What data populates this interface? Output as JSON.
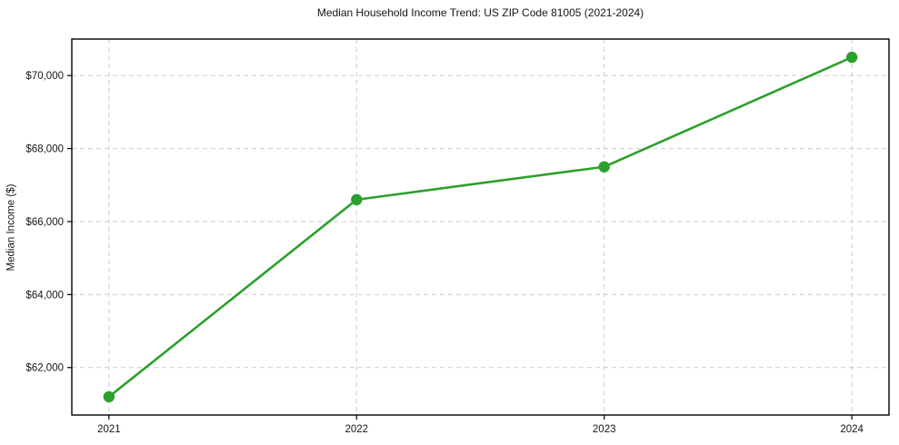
{
  "chart_data": {
    "type": "line",
    "title": "Median Household Income Trend: US ZIP Code 81005 (2021-2024)",
    "xlabel": "",
    "ylabel": "Median Income ($)",
    "x": [
      2021,
      2022,
      2023,
      2024
    ],
    "xtick_labels": [
      "2021",
      "2022",
      "2023",
      "2024"
    ],
    "series": [
      {
        "name": "Median Household Income",
        "values": [
          61200,
          66600,
          67500,
          70500
        ]
      }
    ],
    "yticks": [
      62000,
      64000,
      66000,
      68000,
      70000
    ],
    "ytick_labels": [
      "$62,000",
      "$64,000",
      "$66,000",
      "$68,000",
      "$70,000"
    ],
    "xlim": [
      2020.85,
      2024.15
    ],
    "ylim": [
      60700,
      71000
    ],
    "grid": true,
    "legend_position": "none",
    "colors": {
      "line": "#2ca02c",
      "marker": "#2ca02c",
      "grid": "#cccccc",
      "spine": "#000000",
      "text": "#151515"
    }
  }
}
